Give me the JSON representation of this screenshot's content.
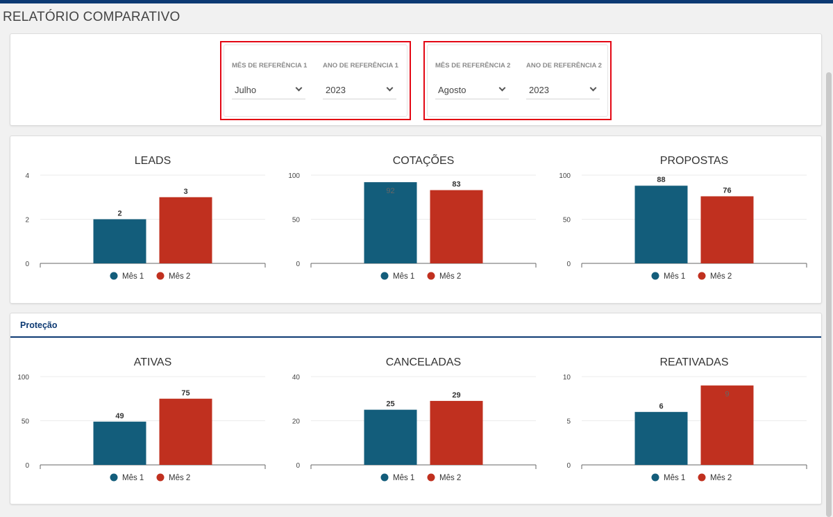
{
  "page": {
    "title": "RELATÓRIO COMPARATIVO"
  },
  "filters": {
    "group1": {
      "month_label": "MÊS DE REFERÊNCIA 1",
      "month_value": "Julho",
      "year_label": "ANO DE REFERÊNCIA 1",
      "year_value": "2023"
    },
    "group2": {
      "month_label": "MÊS DE REFERÊNCIA 2",
      "month_value": "Agosto",
      "year_label": "ANO DE REFERÊNCIA 2",
      "year_value": "2023"
    }
  },
  "section": {
    "title": "Proteção"
  },
  "colors": {
    "mes1": "#135d7b",
    "mes2": "#c0301f",
    "accent": "#0d3a73",
    "highlight": "#e30613"
  },
  "chart_data": [
    {
      "type": "bar",
      "title": "LEADS",
      "series": [
        {
          "name": "Mês 1",
          "values": [
            2
          ]
        },
        {
          "name": "Mês 2",
          "values": [
            3
          ]
        }
      ],
      "ylim": [
        0,
        4
      ],
      "yticks": [
        0,
        2,
        4
      ],
      "grid": true,
      "legend": "bottom"
    },
    {
      "type": "bar",
      "title": "COTAÇÕES",
      "series": [
        {
          "name": "Mês 1",
          "values": [
            92
          ]
        },
        {
          "name": "Mês 2",
          "values": [
            83
          ]
        }
      ],
      "ylim": [
        0,
        100
      ],
      "yticks": [
        0,
        50,
        100
      ],
      "grid": true,
      "legend": "bottom"
    },
    {
      "type": "bar",
      "title": "PROPOSTAS",
      "series": [
        {
          "name": "Mês 1",
          "values": [
            88
          ]
        },
        {
          "name": "Mês 2",
          "values": [
            76
          ]
        }
      ],
      "ylim": [
        0,
        100
      ],
      "yticks": [
        0,
        50,
        100
      ],
      "grid": true,
      "legend": "bottom"
    },
    {
      "type": "bar",
      "title": "ATIVAS",
      "series": [
        {
          "name": "Mês 1",
          "values": [
            49
          ]
        },
        {
          "name": "Mês 2",
          "values": [
            75
          ]
        }
      ],
      "ylim": [
        0,
        100
      ],
      "yticks": [
        0,
        50,
        100
      ],
      "grid": true,
      "legend": "bottom"
    },
    {
      "type": "bar",
      "title": "CANCELADAS",
      "series": [
        {
          "name": "Mês 1",
          "values": [
            25
          ]
        },
        {
          "name": "Mês 2",
          "values": [
            29
          ]
        }
      ],
      "ylim": [
        0,
        40
      ],
      "yticks": [
        0,
        20,
        40
      ],
      "grid": true,
      "legend": "bottom"
    },
    {
      "type": "bar",
      "title": "REATIVADAS",
      "series": [
        {
          "name": "Mês 1",
          "values": [
            6
          ]
        },
        {
          "name": "Mês 2",
          "values": [
            9
          ]
        }
      ],
      "ylim": [
        0,
        10
      ],
      "yticks": [
        0,
        5,
        10
      ],
      "grid": true,
      "legend": "bottom"
    }
  ]
}
